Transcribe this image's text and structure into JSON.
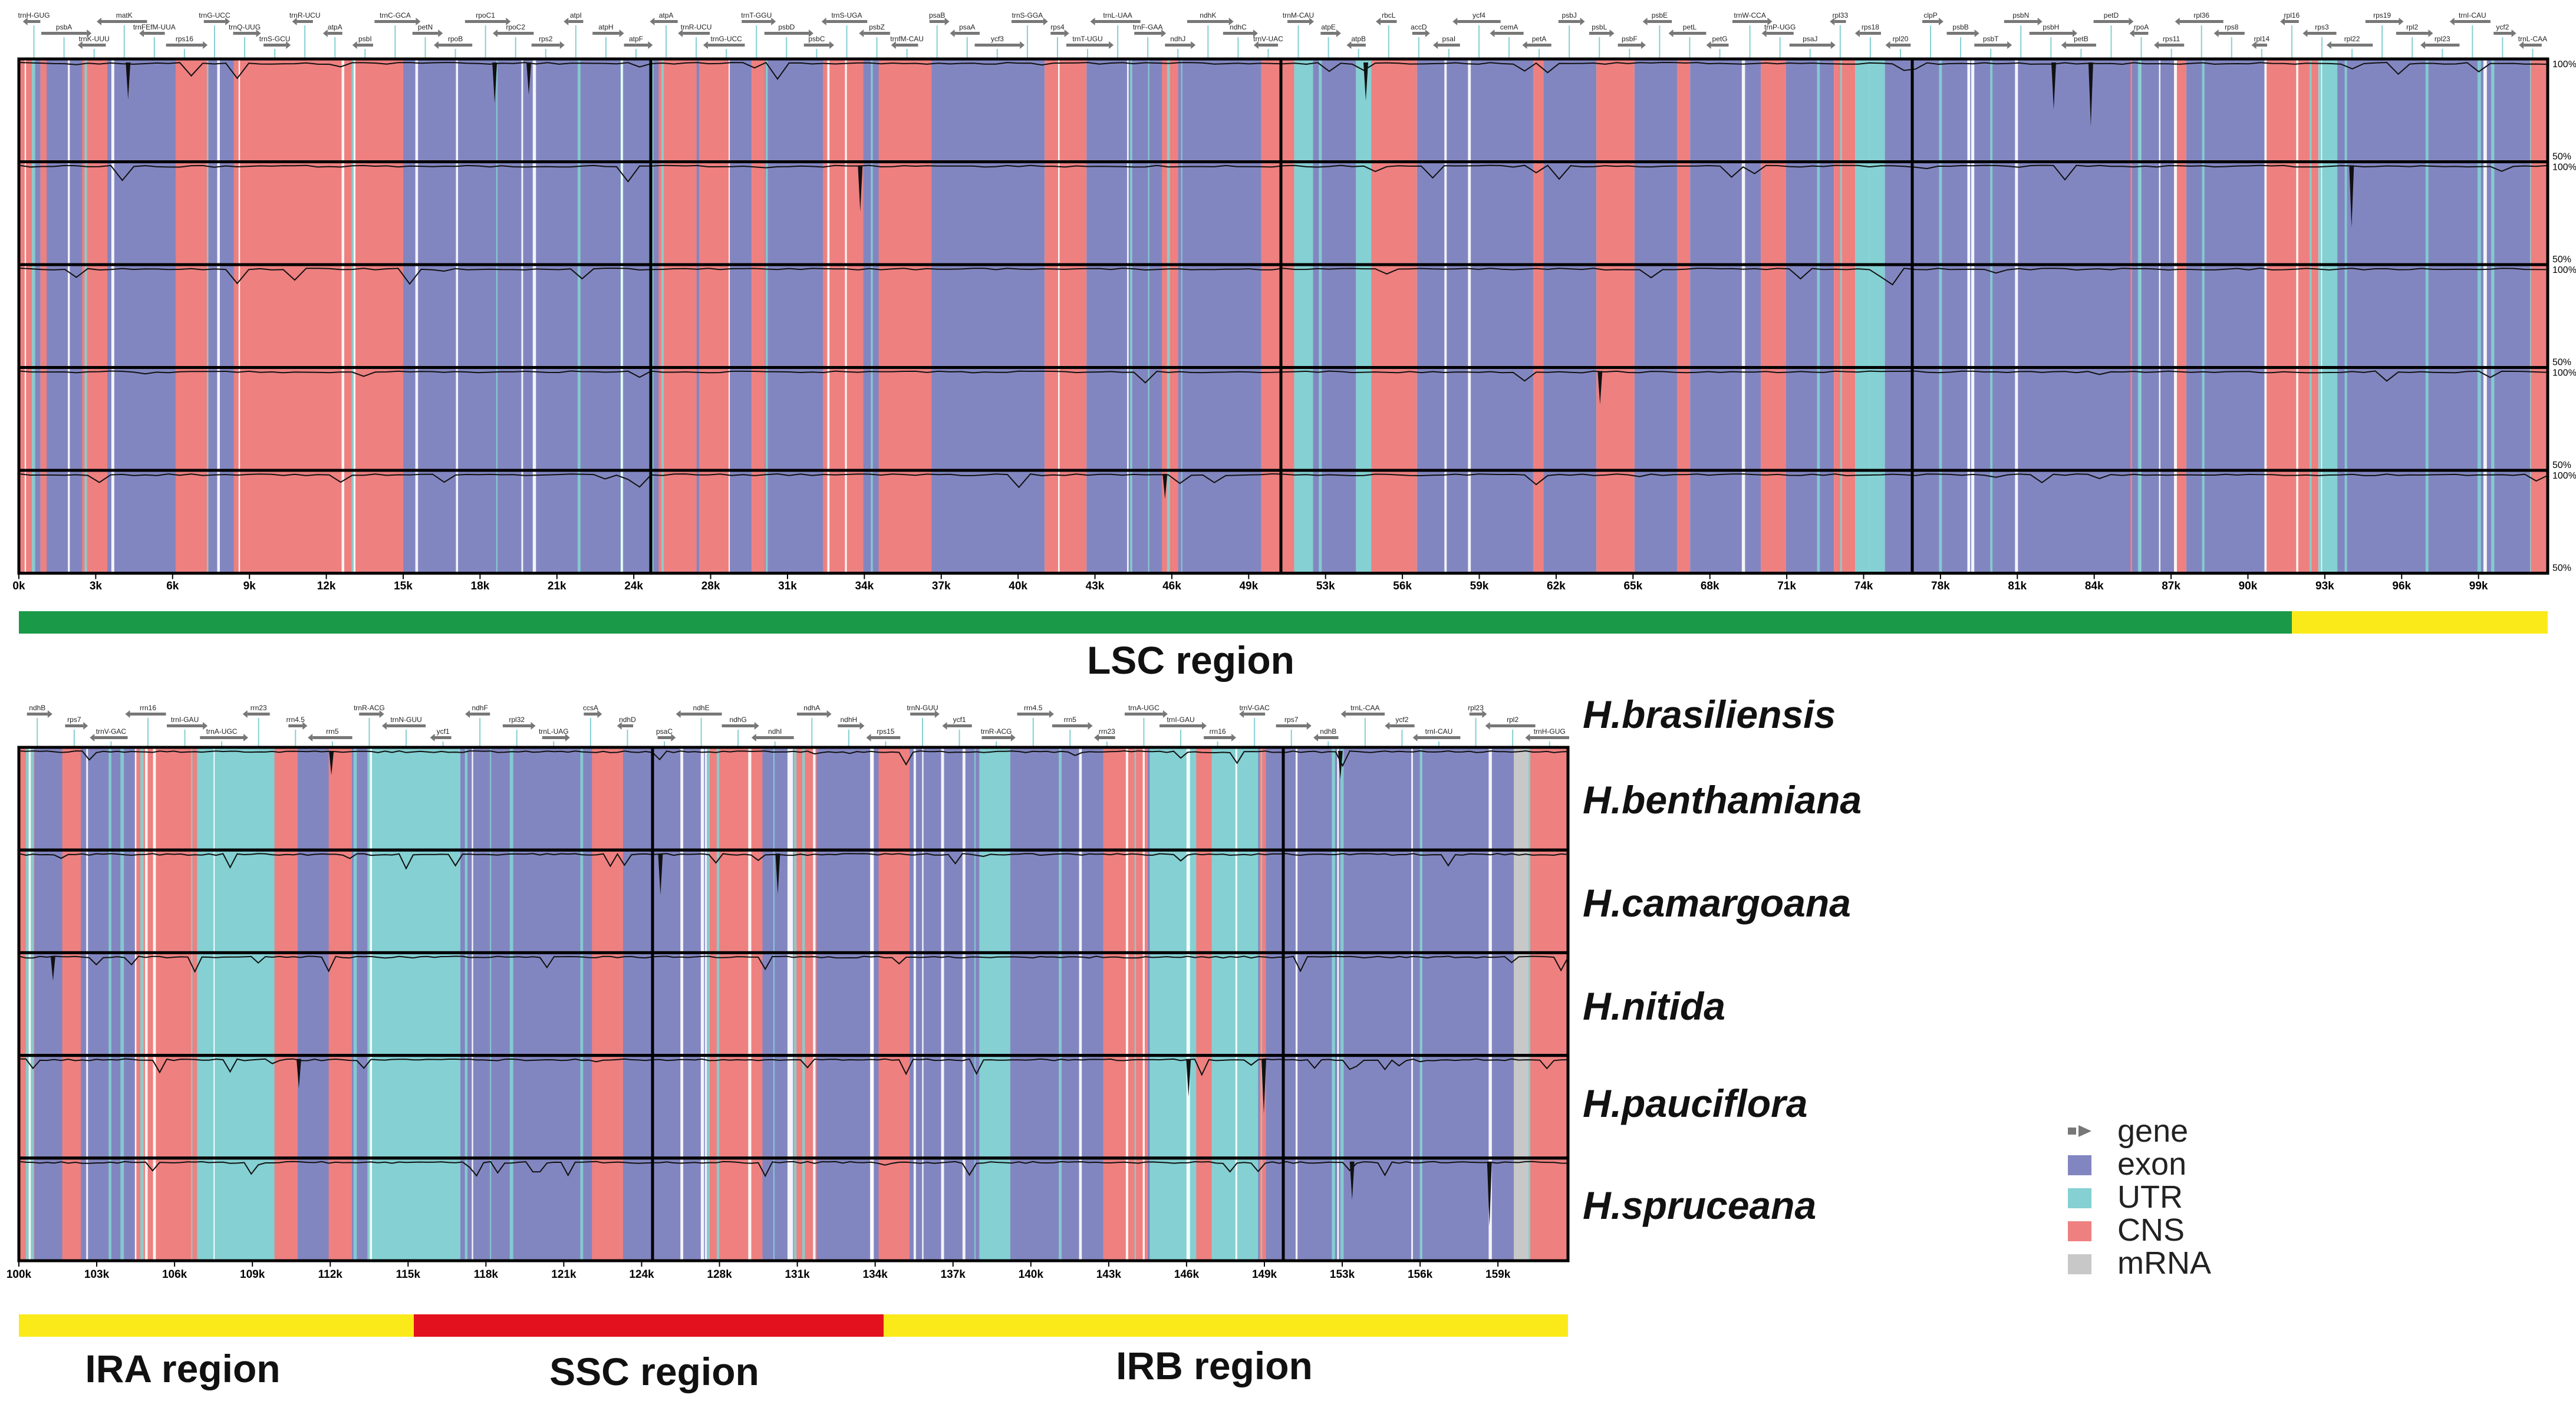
{
  "colors": {
    "exon": "#8286c0",
    "UTR": "#84d0d2",
    "CNS": "#ee8080",
    "mRNA": "#c8c8c8",
    "gene": "#777777",
    "LSC": "#1a9a48",
    "IR": "#fbea1a",
    "SSC": "#e3101d"
  },
  "panel1": {
    "ticks": [
      "0k",
      "3k",
      "6k",
      "9k",
      "12k",
      "15k",
      "18k",
      "21k",
      "24k",
      "28k",
      "31k",
      "34k",
      "37k",
      "40k",
      "43k",
      "46k",
      "49k",
      "53k",
      "56k",
      "59k",
      "62k",
      "65k",
      "68k",
      "71k",
      "74k",
      "78k",
      "81k",
      "84k",
      "87k",
      "90k",
      "93k",
      "96k",
      "99k"
    ],
    "genes": [
      "trnH-GUG",
      "psbA",
      "trnK-UUU",
      "matK",
      "trnFEfM-UUA",
      "rps16",
      "trnG-UCC",
      "trnQ-UUG",
      "trnS-GCU",
      "trnR-UCU",
      "atpA",
      "psbI",
      "trnC-GCA",
      "petN",
      "rpoB",
      "rpoC1",
      "rpoC2",
      "rps2",
      "atpI",
      "atpH",
      "atpF",
      "atpA",
      "trnR-UCU",
      "trnG-UCC",
      "trnT-GGU",
      "psbD",
      "psbC",
      "trnS-UGA",
      "psbZ",
      "trnfM-CAU",
      "psaB",
      "psaA",
      "ycf3",
      "trnS-GGA",
      "rps4",
      "trnT-UGU",
      "trnL-UAA",
      "trnF-GAA",
      "ndhJ",
      "ndhK",
      "ndhC",
      "trnV-UAC",
      "trnM-CAU",
      "atpE",
      "atpB",
      "rbcL",
      "accD",
      "psaI",
      "ycf4",
      "cemA",
      "petA",
      "psbJ",
      "psbL",
      "psbF",
      "psbE",
      "petL",
      "petG",
      "trnW-CCA",
      "trnP-UGG",
      "psaJ",
      "rpl33",
      "rps18",
      "rpl20",
      "clpP",
      "psbB",
      "psbT",
      "psbN",
      "psbH",
      "petB",
      "petD",
      "rpoA",
      "rps11",
      "rpl36",
      "rps8",
      "rpl14",
      "rpl16",
      "rps3",
      "rpl22",
      "rps19",
      "rpl2",
      "rpl23",
      "trnI-CAU",
      "ycf2",
      "trnL-CAA"
    ]
  },
  "panel2": {
    "ticks": [
      "100k",
      "103k",
      "106k",
      "109k",
      "112k",
      "115k",
      "118k",
      "121k",
      "124k",
      "128k",
      "131k",
      "134k",
      "137k",
      "140k",
      "143k",
      "146k",
      "149k",
      "153k",
      "156k",
      "159k"
    ],
    "genes": [
      "ndhB",
      "rps7",
      "trnV-GAC",
      "rrn16",
      "trnI-GAU",
      "trnA-UGC",
      "rrn23",
      "rrn4.5",
      "rrn5",
      "trnR-ACG",
      "trnN-GUU",
      "ycf1",
      "ndhF",
      "rpl32",
      "trnL-UAG",
      "ccsA",
      "ndhD",
      "psaC",
      "ndhE",
      "ndhG",
      "ndhI",
      "ndhA",
      "ndhH",
      "rps15",
      "trnN-GUU",
      "ycf1",
      "trnR-ACG",
      "rrn4.5",
      "rrn5",
      "rrn23",
      "trnA-UGC",
      "trnI-GAU",
      "rrn16",
      "trnV-GAC",
      "rps7",
      "ndhB",
      "trnL-CAA",
      "ycf2",
      "trnI-CAU",
      "rpl23",
      "rpl2",
      "trnH-GUG"
    ]
  },
  "rows": [
    {
      "pct_top": "100%",
      "pct_bottom": "50%"
    },
    {
      "pct_top": "100%",
      "pct_bottom": "50%"
    },
    {
      "pct_top": "100%",
      "pct_bottom": "50%"
    },
    {
      "pct_top": "100%",
      "pct_bottom": "50%"
    },
    {
      "pct_top": "100%",
      "pct_bottom": "50%"
    }
  ],
  "regions": {
    "lsc_label": "LSC region",
    "ira_label": "IRA region",
    "ssc_label": "SSC region",
    "irb_label": "IRB region"
  },
  "species": [
    "H.brasiliensis",
    "H.benthamiana",
    "H.camargoana",
    "H.nitida",
    "H.pauciflora",
    "H.spruceana"
  ],
  "legend": [
    {
      "key": "gene",
      "label": "gene"
    },
    {
      "key": "exon",
      "label": "exon"
    },
    {
      "key": "UTR",
      "label": "UTR"
    },
    {
      "key": "CNS",
      "label": "CNS"
    },
    {
      "key": "mRNA",
      "label": "mRNA"
    }
  ]
}
